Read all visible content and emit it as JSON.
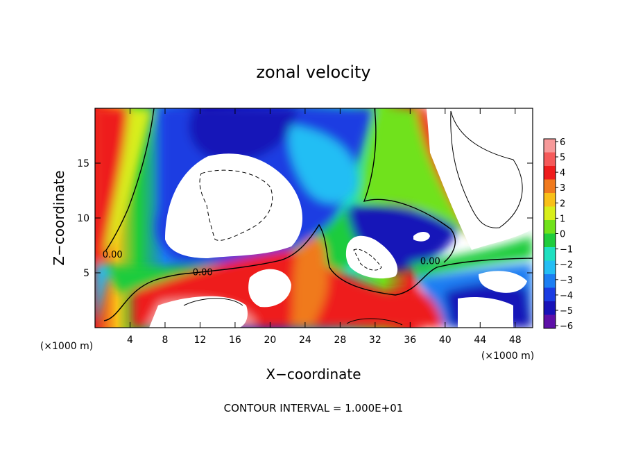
{
  "chart_data": {
    "type": "heatmap",
    "title": "zonal velocity",
    "xlabel": "X−coordinate",
    "ylabel": "Z−coordinate",
    "x_unit_left": "(×1000 m)",
    "x_unit_right": "(×1000 m)",
    "xlim": [
      0,
      50
    ],
    "ylim": [
      0,
      20
    ],
    "x_ticks": [
      4,
      8,
      12,
      16,
      20,
      24,
      28,
      32,
      36,
      40,
      44,
      48
    ],
    "y_ticks": [
      5,
      10,
      15
    ],
    "footer": "CONTOUR INTERVAL = 1.000E+01",
    "contour_labels": [
      {
        "text": "0.00",
        "x": 2,
        "z": 6.7
      },
      {
        "text": "0.00",
        "x": 12.3,
        "z": 5.1
      },
      {
        "text": "0.00",
        "x": 38.3,
        "z": 6.1
      }
    ],
    "colorbar": {
      "levels": [
        "6",
        "5",
        "4",
        "3",
        "2",
        "1",
        "0",
        "−1",
        "−2",
        "−3",
        "−4",
        "−5",
        "−6"
      ],
      "colors": [
        "#f79a9a",
        "#f55a5a",
        "#ee1c1c",
        "#f07a1e",
        "#f8c018",
        "#d8ee1a",
        "#70e21a",
        "#1ecc3c",
        "#1ee0c0",
        "#24bef4",
        "#1c7ef2",
        "#1a3ce2",
        "#1812b8",
        "#5e10a8"
      ]
    }
  }
}
